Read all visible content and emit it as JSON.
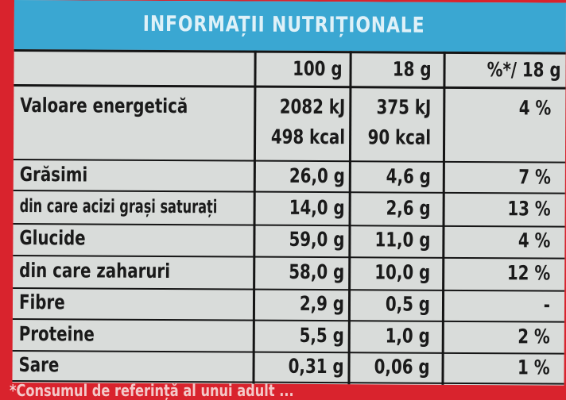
{
  "title": "INFORMAȚII NUTRIȚIONALE",
  "columns": [
    "100 g",
    "18 g",
    "%*/ 18 g"
  ],
  "rows": [
    {
      "name": "Valoare energetică",
      "per100": "2082 kJ",
      "per100b": "498 kcal",
      "per18": "375 kJ",
      "per18b": "90 kcal",
      "pct": "4 %"
    },
    {
      "name": "Grăsimi",
      "per100": "26,0 g",
      "per18": "4,6 g",
      "pct": "7 %"
    },
    {
      "name": "din care acizi grași saturați",
      "per100": "14,0 g",
      "per18": "2,6 g",
      "pct": "13 %"
    },
    {
      "name": "Glucide",
      "per100": "59,0 g",
      "per18": "11,0 g",
      "pct": "4 %"
    },
    {
      "name": "din care zaharuri",
      "per100": "58,0 g",
      "per18": "10,0 g",
      "pct": "12 %"
    },
    {
      "name": "Fibre",
      "per100": "2,9 g",
      "per18": "0,5 g",
      "pct": "-"
    },
    {
      "name": "Proteine",
      "per100": "5,5 g",
      "per18": "1,0 g",
      "pct": "2 %"
    },
    {
      "name": "Sare",
      "per100": "0,31 g",
      "per18": "0,06 g",
      "pct": "1 %"
    }
  ],
  "footnote": "*Consumul de referință al unui adult ..."
}
